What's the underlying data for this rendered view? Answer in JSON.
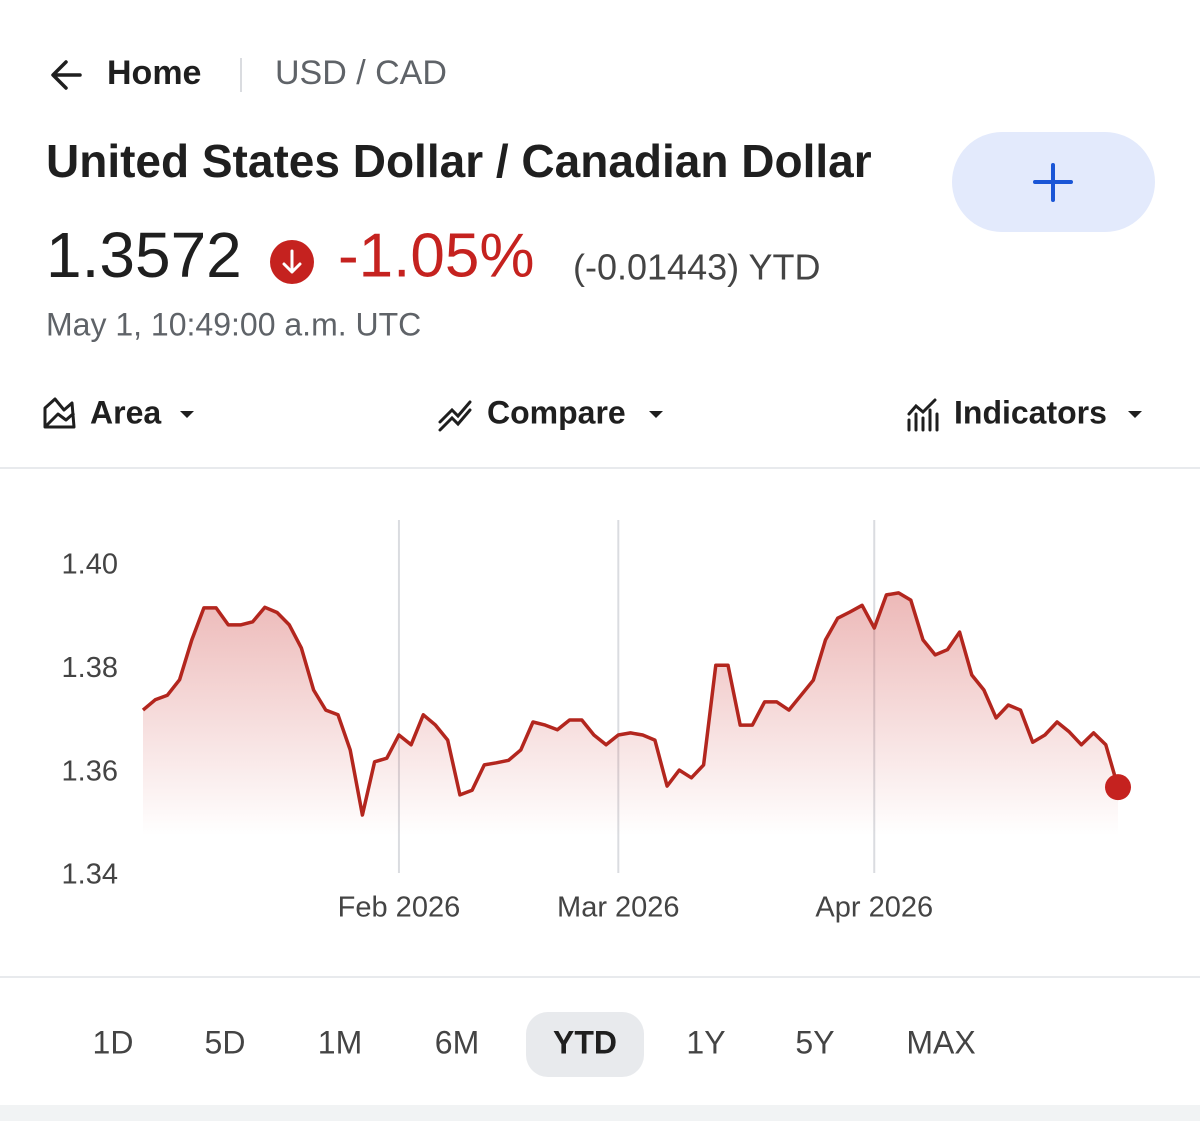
{
  "nav": {
    "back_label": "Home",
    "breadcrumb": "USD / CAD"
  },
  "header": {
    "title": "United States Dollar / Canadian Dollar",
    "price": "1.3572",
    "change_pct": "-1.05%",
    "change_abs": "(-0.01443) YTD",
    "timestamp": "May 1, 10:49:00 a.m. UTC"
  },
  "toolbar": [
    "Area",
    "Compare",
    "Indicators"
  ],
  "chart_data": {
    "type": "area",
    "color": "#b3261e",
    "categories": [
      null,
      null,
      null,
      null,
      null,
      null,
      null,
      null,
      null,
      null,
      null,
      null,
      null,
      null,
      null,
      null,
      null,
      null,
      null,
      null,
      null,
      "Feb 2026",
      null,
      null,
      null,
      null,
      null,
      null,
      null,
      null,
      null,
      null,
      null,
      null,
      null,
      null,
      null,
      null,
      null,
      "Mar 2026",
      null,
      null,
      null,
      null,
      null,
      null,
      null,
      null,
      null,
      null,
      null,
      null,
      null,
      null,
      null,
      null,
      null,
      null,
      null,
      null,
      "Apr 2026",
      null,
      null,
      null,
      null,
      null,
      null,
      null,
      null,
      null,
      null,
      null,
      null,
      null,
      null,
      null,
      null,
      null,
      null,
      null,
      null
    ],
    "values": [
      1.3721,
      1.3741,
      1.375,
      1.378,
      1.3857,
      1.3919,
      1.3919,
      1.3886,
      1.3886,
      1.3892,
      1.392,
      1.391,
      1.3886,
      1.3841,
      1.376,
      1.3721,
      1.3712,
      1.3644,
      1.3518,
      1.3621,
      1.3628,
      1.3673,
      1.3654,
      1.3712,
      1.3692,
      1.3663,
      1.3557,
      1.3566,
      1.3615,
      1.3619,
      1.3624,
      1.3644,
      1.3698,
      1.3692,
      1.3683,
      1.3702,
      1.3702,
      1.3673,
      1.3654,
      1.3673,
      1.3677,
      1.3673,
      1.3663,
      1.3574,
      1.3605,
      1.359,
      1.3615,
      1.3808,
      1.3808,
      1.3692,
      1.3692,
      1.3737,
      1.3737,
      1.3721,
      1.375,
      1.3779,
      1.3857,
      1.3899,
      1.3911,
      1.3924,
      1.388,
      1.3944,
      1.3948,
      1.3934,
      1.3857,
      1.3828,
      1.3838,
      1.3872,
      1.3789,
      1.376,
      1.3706,
      1.3731,
      1.3721,
      1.3659,
      1.3673,
      1.3698,
      1.3679,
      1.3654,
      1.3677,
      1.3654,
      1.3572
    ],
    "ylim": [
      1.34,
      1.4
    ],
    "yticks": [
      1.34,
      1.36,
      1.38,
      {
        "value": 1.4,
        "label": "1.40"
      }
    ],
    "grid": "vertical"
  },
  "ranges": [
    "1D",
    "5D",
    "1M",
    "6M",
    "YTD",
    "1Y",
    "5Y",
    "MAX"
  ],
  "selected_range": "YTD"
}
